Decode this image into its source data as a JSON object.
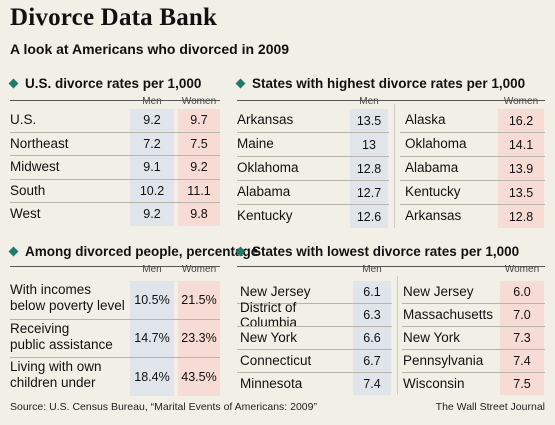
{
  "title": "Divorce Data Bank",
  "subtitle": "A look at Americans who divorced in 2009",
  "us_rates": {
    "heading": "U.S. divorce rates per 1,000",
    "men_label": "Men",
    "women_label": "Women",
    "rows": [
      {
        "label": "U.S.",
        "men": "9.2",
        "women": "9.7"
      },
      {
        "label": "Northeast",
        "men": "7.2",
        "women": "7.5"
      },
      {
        "label": "Midwest",
        "men": "9.1",
        "women": "9.2"
      },
      {
        "label": "South",
        "men": "10.2",
        "women": "11.1"
      },
      {
        "label": "West",
        "men": "9.2",
        "women": "9.8"
      }
    ]
  },
  "highest": {
    "heading": "States with highest divorce rates per 1,000",
    "men_label": "Men",
    "women_label": "Women",
    "men": [
      {
        "state": "Arkansas",
        "value": "13.5"
      },
      {
        "state": "Maine",
        "value": "13"
      },
      {
        "state": "Oklahoma",
        "value": "12.8"
      },
      {
        "state": "Alabama",
        "value": "12.7"
      },
      {
        "state": "Kentucky",
        "value": "12.6"
      }
    ],
    "women": [
      {
        "state": "Alaska",
        "value": "16.2"
      },
      {
        "state": "Oklahoma",
        "value": "14.1"
      },
      {
        "state": "Alabama",
        "value": "13.9"
      },
      {
        "state": "Kentucky",
        "value": "13.5"
      },
      {
        "state": "Arkansas",
        "value": "12.8"
      }
    ]
  },
  "divorced_pct": {
    "heading": "Among divorced people, percentage",
    "men_label": "Men",
    "women_label": "Women",
    "rows": [
      {
        "line1": "With incomes",
        "line2": "below poverty level",
        "men": "10.5%",
        "women": "21.5%"
      },
      {
        "line1": "Receiving",
        "line2": "public assistance",
        "men": "14.7%",
        "women": "23.3%"
      },
      {
        "line1": "Living with own",
        "line2": "children under",
        "men": "18.4%",
        "women": "43.5%"
      }
    ]
  },
  "lowest": {
    "heading": "States with lowest divorce rates per 1,000",
    "men_label": "Men",
    "women_label": "Women",
    "men": [
      {
        "state": "New Jersey",
        "value": "6.1"
      },
      {
        "state": "District of Columbia",
        "value": "6.3"
      },
      {
        "state": "New York",
        "value": "6.6"
      },
      {
        "state": "Connecticut",
        "value": "6.7"
      },
      {
        "state": "Minnesota",
        "value": "7.4"
      }
    ],
    "women": [
      {
        "state": "New Jersey",
        "value": "6.0"
      },
      {
        "state": "Massachusetts",
        "value": "7.0"
      },
      {
        "state": "New York",
        "value": "7.3"
      },
      {
        "state": "Pennsylvania",
        "value": "7.4"
      },
      {
        "state": "Wisconsin",
        "value": "7.5"
      }
    ]
  },
  "footer": {
    "source": "Source: U.S. Census Bureau, “Marital Events of Americans: 2009”",
    "credit": "The Wall Street Journal"
  },
  "colors": {
    "accent": "#1e7b6a",
    "men_fill": "#dfe5ea",
    "women_fill": "#f6dcd5",
    "background": "#f2efe6"
  }
}
